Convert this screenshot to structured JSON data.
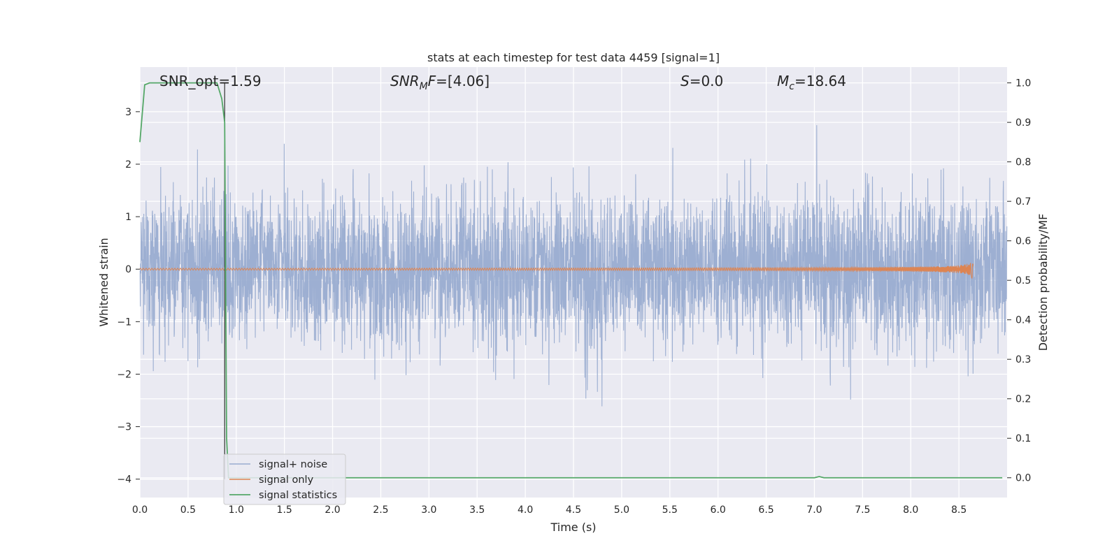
{
  "chart_data": {
    "type": "line",
    "title": "stats at each timestep for test data 4459 [signal=1]",
    "xlabel": "Time (s)",
    "ylabel_left": "Whitened strain",
    "ylabel_right": "Detection probability/MF",
    "xlim": [
      0.0,
      9.0
    ],
    "ylim_left": [
      -4.35,
      3.85
    ],
    "ylim_right": [
      -0.05,
      1.04
    ],
    "x_ticks": [
      0.0,
      0.5,
      1.0,
      1.5,
      2.0,
      2.5,
      3.0,
      3.5,
      4.0,
      4.5,
      5.0,
      5.5,
      6.0,
      6.5,
      7.0,
      7.5,
      8.0,
      8.5
    ],
    "x_tick_labels": [
      "0.0",
      "0.5",
      "1.0",
      "1.5",
      "2.0",
      "2.5",
      "3.0",
      "3.5",
      "4.0",
      "4.5",
      "5.0",
      "5.5",
      "6.0",
      "6.5",
      "7.0",
      "7.5",
      "8.0",
      "8.5"
    ],
    "y_left_ticks": [
      3,
      2,
      1,
      0,
      -1,
      -2,
      -3,
      -4
    ],
    "y_left_tick_labels": [
      "3",
      "2",
      "1",
      "0",
      "−1",
      "−2",
      "−3",
      "−4"
    ],
    "y_right_ticks": [
      1.0,
      0.9,
      0.8,
      0.7,
      0.6,
      0.5,
      0.4,
      0.3,
      0.2,
      0.1,
      0.0
    ],
    "y_right_tick_labels": [
      "1.0",
      "0.9",
      "0.8",
      "0.7",
      "0.6",
      "0.5",
      "0.4",
      "0.3",
      "0.2",
      "0.1",
      "0.0"
    ],
    "grid": true,
    "legend_position": "lower-left",
    "annotations": [
      {
        "label": "SNR_opt",
        "value": "=1.59"
      },
      {
        "label": "SNR_MF",
        "value": "=[4.06]"
      },
      {
        "label": "S",
        "value": "=0.0"
      },
      {
        "label": "M_c",
        "value": "=18.64"
      }
    ],
    "vertical_marker_x": 0.88,
    "colors": {
      "background": "#eaeaf2",
      "grid": "#ffffff",
      "noise": "#99acd0",
      "signal": "#dd8452",
      "statistic": "#55a868",
      "marker": "#404040"
    },
    "series": [
      {
        "name": "signal+ noise",
        "axis": "left",
        "style": "dense noise trace",
        "sigma": 0.72,
        "t_end": 9.0
      },
      {
        "name": "signal only",
        "axis": "left",
        "style": "chirp",
        "t_merger": 8.65,
        "peak_amplitude": 0.3
      },
      {
        "name": "signal statistics",
        "axis": "right",
        "x": [
          0.0,
          0.05,
          0.1,
          0.15,
          0.2,
          0.3,
          0.4,
          0.5,
          0.6,
          0.7,
          0.8,
          0.85,
          0.88,
          0.89,
          0.9,
          0.92,
          0.95,
          1.0,
          1.5,
          2.0,
          3.0,
          4.0,
          5.0,
          5.5,
          6.0,
          7.0,
          7.05,
          7.1,
          7.2,
          8.0,
          8.5,
          8.95
        ],
        "y": [
          0.85,
          0.995,
          1.0,
          1.0,
          1.0,
          1.0,
          1.0,
          1.0,
          1.0,
          1.0,
          1.0,
          0.96,
          0.9,
          0.5,
          0.1,
          0.0,
          0.0,
          0.0,
          0.0,
          0.0,
          0.0,
          0.0,
          0.0,
          0.0,
          0.0,
          0.0,
          0.003,
          0.0,
          0.0,
          0.0,
          0.0,
          0.0
        ]
      }
    ]
  }
}
